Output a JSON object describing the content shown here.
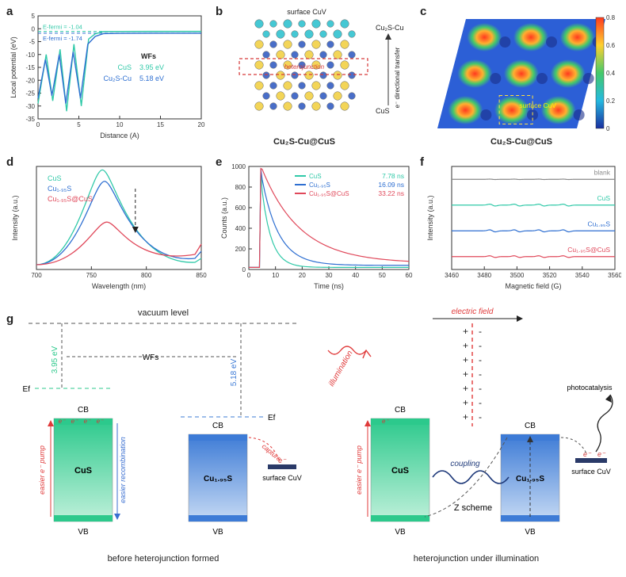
{
  "panel_labels": {
    "a": "a",
    "b": "b",
    "c": "c",
    "d": "d",
    "e": "e",
    "f": "f",
    "g": "g"
  },
  "panel_a": {
    "type": "line",
    "xlabel": "Distance (A)",
    "ylabel": "Local potential (eV)",
    "xlim": [
      0,
      20
    ],
    "xtick_step": 5,
    "ylim": [
      -35,
      5
    ],
    "ytick_step": 5,
    "efermi1_label": "E-fermi = -1.04",
    "efermi1_y": -1.04,
    "efermi1_color": "#30c9a8",
    "efermi2_label": "E-fermi = -1.74",
    "efermi2_y": -1.74,
    "efermi2_color": "#2e6fd1",
    "wfs_title": "WFs",
    "series": [
      {
        "name": "CuS",
        "color": "#30c9a8",
        "wf": "3.95 eV",
        "points": [
          [
            0,
            -29
          ],
          [
            1,
            -10
          ],
          [
            1.8,
            -28
          ],
          [
            2.7,
            -8
          ],
          [
            3.5,
            -32
          ],
          [
            4.4,
            -6
          ],
          [
            5.3,
            -30
          ],
          [
            6.2,
            -4
          ],
          [
            7,
            -2
          ],
          [
            8,
            -1.1
          ],
          [
            10,
            -1.05
          ],
          [
            14,
            -1.04
          ],
          [
            20,
            -1.04
          ]
        ]
      },
      {
        "name": "Cu₂S-Cu",
        "color": "#2e6fd1",
        "wf": "5.18 eV",
        "points": [
          [
            0,
            -27
          ],
          [
            0.9,
            -12
          ],
          [
            1.7,
            -26
          ],
          [
            2.6,
            -10
          ],
          [
            3.4,
            -29
          ],
          [
            4.3,
            -9
          ],
          [
            5.2,
            -27
          ],
          [
            6.1,
            -6
          ],
          [
            7,
            -3
          ],
          [
            8,
            -1.9
          ],
          [
            10,
            -1.78
          ],
          [
            14,
            -1.75
          ],
          [
            20,
            -1.74
          ]
        ]
      }
    ],
    "line_width": 1.4,
    "grid": false,
    "font_size": 9
  },
  "panel_b": {
    "type": "diagram",
    "title_top": "surface CuV",
    "label_right_top": "Cu₂S-Cu",
    "label_right_bot": "CuS",
    "arrow_label": "e⁻ directional transfer",
    "heterojunction_label": "heterojunction",
    "bottom_label": "Cu₂S-Cu@CuS",
    "colors": {
      "cu_top": "#36c4d1",
      "s": "#f3d24a",
      "cu": "#3a62c4",
      "outline": "#5a5a5a",
      "box": "#d63a3a"
    }
  },
  "panel_c": {
    "type": "heatmap",
    "bottom_label": "Cu₂S-Cu@CuS",
    "cuv_label": "surface CuV",
    "bar_min": 0,
    "bar_max": 0.8,
    "bar_ticks": [
      0,
      0.2,
      0.4,
      0.6,
      0.8
    ],
    "bg": "#2c5fd6",
    "bright": "#ff3a1f",
    "mid": "#44c96a",
    "dark": "#1a2f88",
    "grid_rows": 3,
    "grid_cols": 3
  },
  "panel_d": {
    "type": "line",
    "xlabel": "Wavelength (nm)",
    "ylabel": "Intensity (a.u.)",
    "xlim": [
      700,
      850
    ],
    "xticks": [
      700,
      750,
      800,
      850
    ],
    "series": [
      {
        "name": "CuS",
        "color": "#30c9a8",
        "peak_x": 760,
        "peak_h": 1.0
      },
      {
        "name": "Cu₁.₉₅S",
        "color": "#2e6fd1",
        "peak_x": 762,
        "peak_h": 0.88
      },
      {
        "name": "Cu₁.₉₅S@CuS",
        "color": "#e0485a",
        "peak_x": 764,
        "peak_h": 0.45
      }
    ],
    "arrow_color": "#222",
    "line_width": 1.3
  },
  "panel_e": {
    "type": "decay",
    "xlabel": "Time (ns)",
    "ylabel": "Counts (a.u.)",
    "xlim": [
      0,
      60
    ],
    "xtick_step": 10,
    "ylim": [
      0,
      1000
    ],
    "ytick_step": 200,
    "series": [
      {
        "name": "CuS",
        "color": "#30c9a8",
        "tau": "7.78 ns",
        "decay": 0.28
      },
      {
        "name": "Cu₁.₉₅S",
        "color": "#2e6fd1",
        "tau": "16.09 ns",
        "decay": 0.16
      },
      {
        "name": "Cu₁.₉₅S@CuS",
        "color": "#e0485a",
        "tau": "33.22 ns",
        "decay": 0.07
      }
    ],
    "rise_at": 4,
    "line_width": 1.2
  },
  "panel_f": {
    "type": "epr",
    "xlabel": "Magnetic field (G)",
    "ylabel": "Intensity (a.u.)",
    "xlim": [
      3460,
      3560
    ],
    "xtick_step": 20,
    "series": [
      {
        "name": "blank",
        "color": "#8a8a8a",
        "amp": 0.12,
        "offset": 3
      },
      {
        "name": "CuS",
        "color": "#30c9a8",
        "amp": 0.55,
        "offset": 2
      },
      {
        "name": "Cu₁.₉₅S",
        "color": "#2e6fd1",
        "amp": 0.6,
        "offset": 1
      },
      {
        "name": "Cu₁.₉₅S@CuS",
        "color": "#e0485a",
        "amp": 0.5,
        "offset": 0
      }
    ],
    "peak_centers": [
      3485,
      3500,
      3515,
      3530
    ],
    "line_width": 1.2
  },
  "panel_g": {
    "type": "schematic",
    "vacuum_label": "vacuum level",
    "wfs_label": "WFs",
    "ef_label": "Ef",
    "cb_label": "CB",
    "vb_label": "VB",
    "cus_label": "CuS",
    "cu2s_label": "Cu₁.₉₅S",
    "cuv_label": "surface CuV",
    "wf_cus": "3.95 eV",
    "wf_cu2s": "5.18 eV",
    "easier_pump": "easier e⁻ pump",
    "easier_recomb": "easier recombination",
    "capture": "capture",
    "e_minus": "e⁻",
    "electric_field": "electric field",
    "illumination": "illumination",
    "coupling": "coupling",
    "zscheme": "Z scheme",
    "photocatalysis": "photocatalysis",
    "caption_left": "before heterojunction formed",
    "caption_right": "heterojunction under illumination",
    "colors": {
      "cus_top": "#2cc98c",
      "cus_bot": "#bff0da",
      "cu2s_top": "#3d7bd6",
      "cu2s_bot": "#c6daf4",
      "pump": "#e03a3a",
      "recomb": "#3a6fd1",
      "dash": "#555",
      "ef_cus": "#2cc98c",
      "ef_cu2s": "#3d7bd6"
    }
  }
}
